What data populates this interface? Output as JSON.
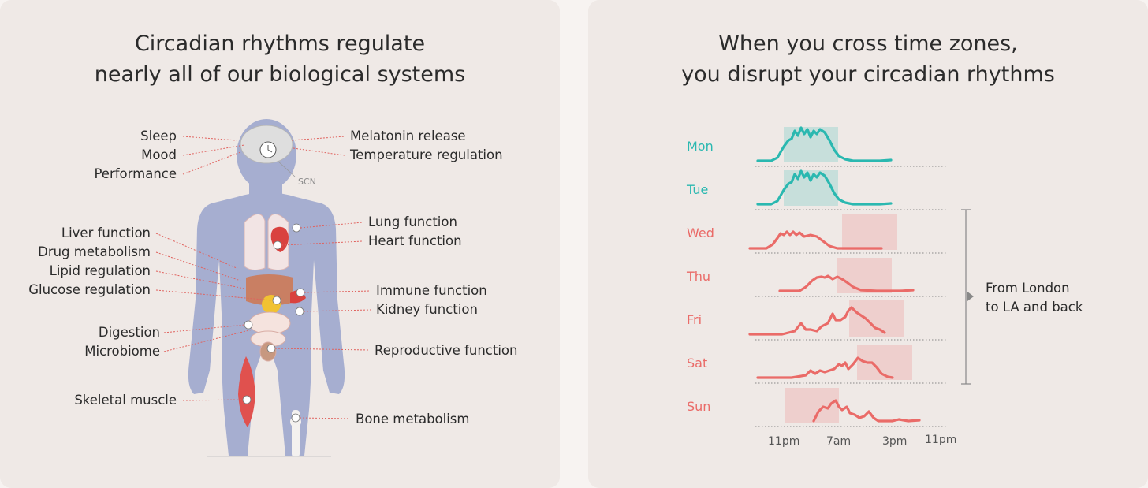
{
  "left": {
    "title_line1": "Circadian rhythms regulate",
    "title_line2": "nearly all of our biological systems",
    "labels": {
      "sleep": "Sleep",
      "mood": "Mood",
      "performance": "Performance",
      "melatonin": "Melatonin release",
      "temperature": "Temperature regulation",
      "scn": "SCN",
      "liver": "Liver function",
      "drug": "Drug metabolism",
      "lipid": "Lipid regulation",
      "glucose": "Glucose regulation",
      "digestion": "Digestion",
      "microbiome": "Microbiome",
      "skeletal": "Skeletal muscle",
      "lung": "Lung function",
      "heart": "Heart function",
      "immune": "Immune function",
      "kidney": "Kidney function",
      "reproductive": "Reproductive function",
      "bone": "Bone metabolism"
    }
  },
  "right": {
    "title_line1": "When you cross time zones,",
    "title_line2": "you disrupt your circadian rhythms",
    "days": [
      "Mon",
      "Tue",
      "Wed",
      "Thu",
      "Fri",
      "Sat",
      "Sun"
    ],
    "x_ticks": [
      "11pm",
      "7am",
      "3pm",
      "11pm"
    ],
    "bracket_line1": "From London",
    "bracket_line2": "to LA and back"
  },
  "colors": {
    "teal": "#2ab8b0",
    "coral": "#ea6b68",
    "body": "#a6aed0",
    "label_line": "#e0625e"
  }
}
